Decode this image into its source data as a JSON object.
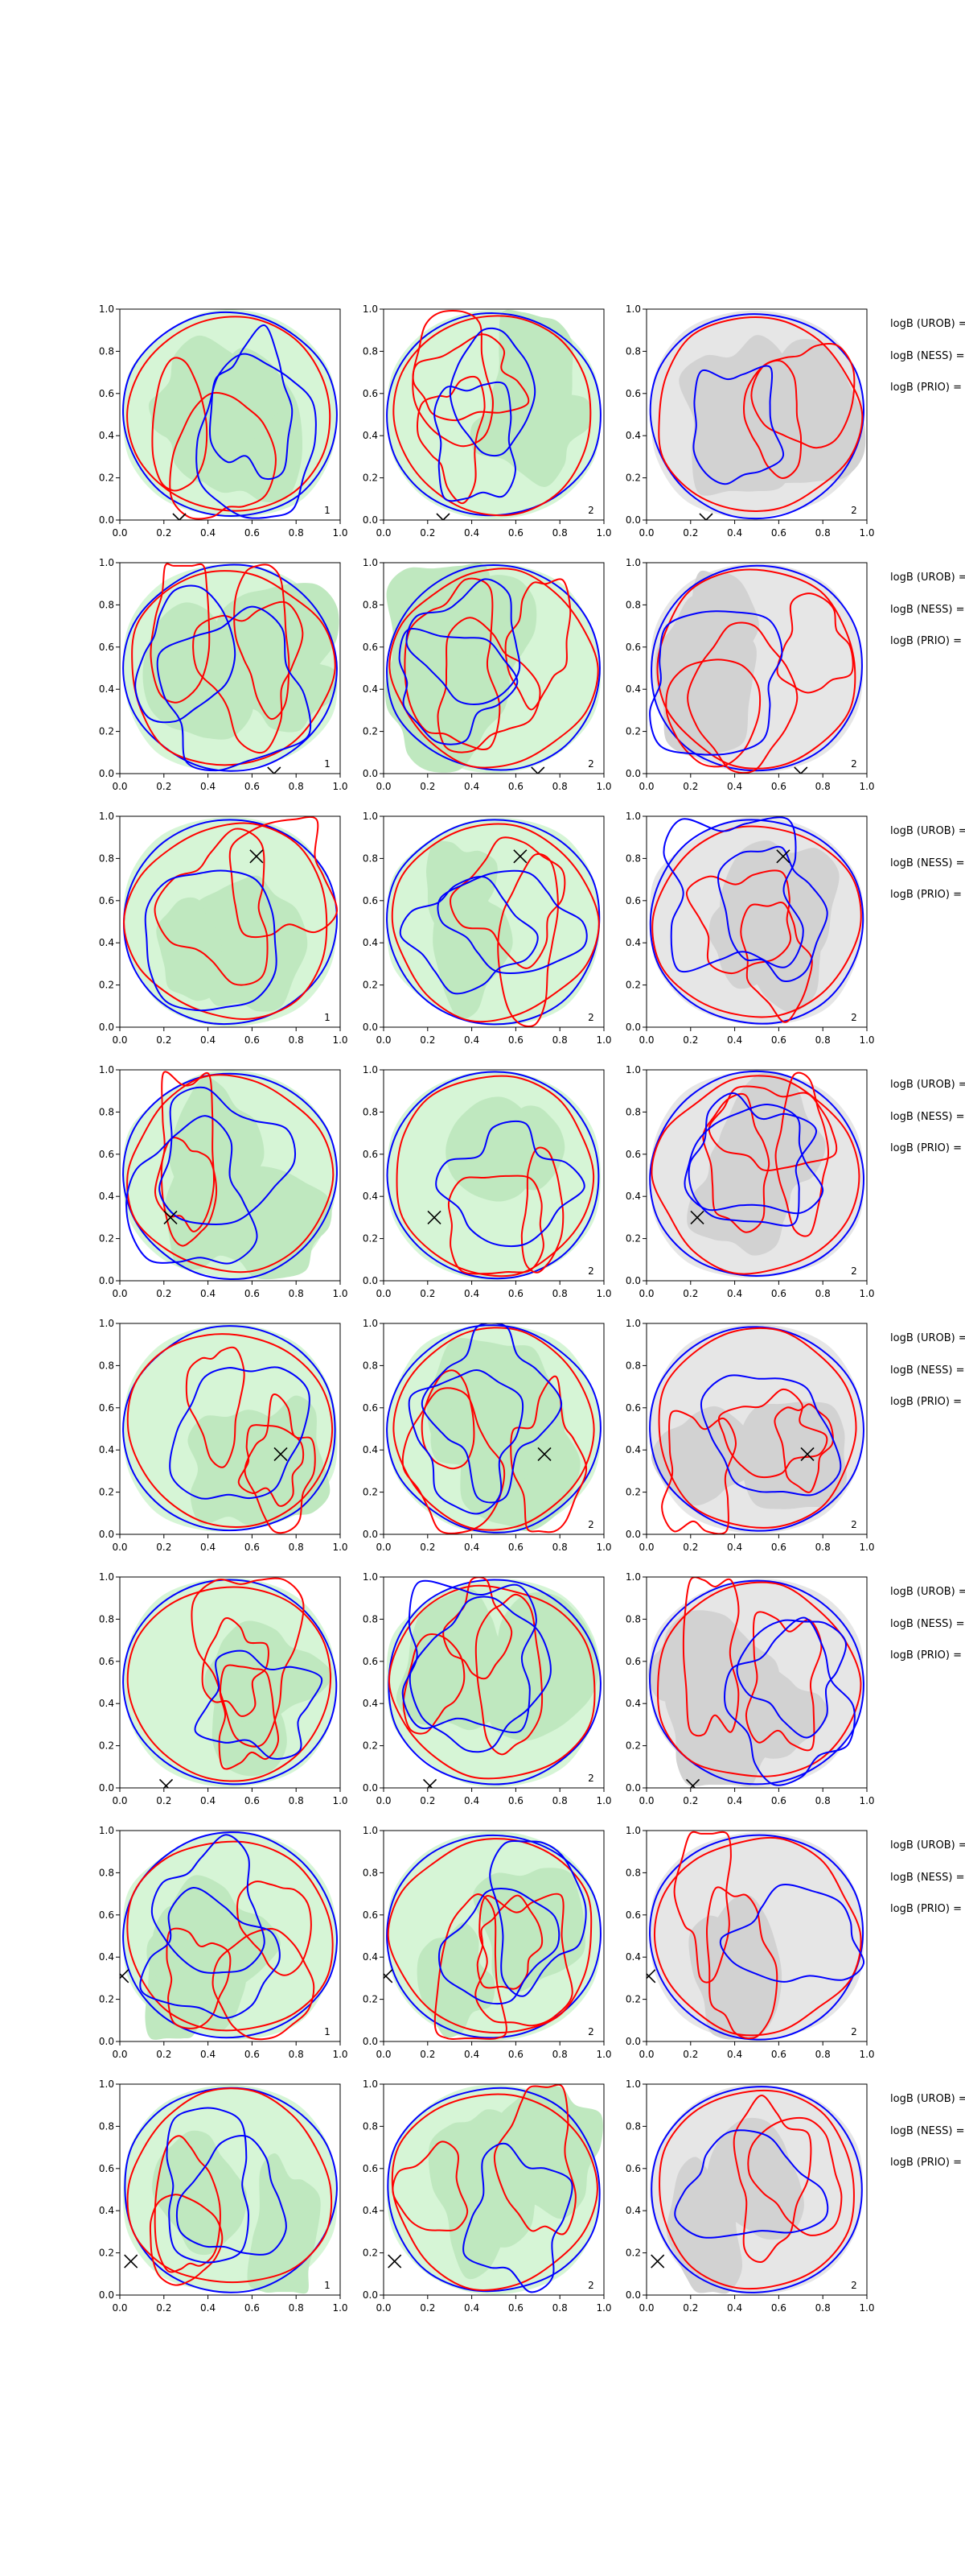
{
  "chart_data": {
    "type": "contour",
    "grid": false,
    "layout": {
      "rows": 8,
      "cols": 3
    },
    "xlim": [
      0,
      1
    ],
    "ylim": [
      0,
      1
    ],
    "ticks": {
      "x": [
        "0.0",
        "0.2",
        "0.4",
        "0.6",
        "0.8",
        "1.0"
      ],
      "y": [
        "0.0",
        "0.2",
        "0.4",
        "0.6",
        "0.8",
        "1.0"
      ]
    },
    "colors": {
      "fill_green_light": "#d6f5d6",
      "fill_green_mid": "#bfe8bf",
      "fill_gray_light": "#e6e6e6",
      "fill_gray_mid": "#d2d2d2",
      "contour_blue": "#0000ff",
      "contour_red": "#ff0000",
      "marker": "#000000"
    },
    "legend_labels": [
      "logB (UROB) =",
      "logB (NESS) =",
      "logB (PRIO) ="
    ],
    "rows": [
      {
        "marker": [
          0.27,
          0.0
        ],
        "panel_labels": [
          "1",
          "2",
          "2"
        ]
      },
      {
        "marker": [
          0.7,
          0.0
        ],
        "panel_labels": [
          "1",
          "2",
          "2"
        ]
      },
      {
        "marker": [
          0.62,
          0.81
        ],
        "panel_labels": [
          "1",
          "2",
          "2"
        ]
      },
      {
        "marker": [
          0.23,
          0.3
        ],
        "panel_labels": [
          "",
          "2",
          "2"
        ]
      },
      {
        "marker": [
          0.73,
          0.38
        ],
        "panel_labels": [
          "",
          "2",
          "2"
        ]
      },
      {
        "marker": [
          0.21,
          0.01
        ],
        "panel_labels": [
          "",
          "2",
          ""
        ]
      },
      {
        "marker": [
          0.01,
          0.31
        ],
        "panel_labels": [
          "1",
          "2",
          "2"
        ]
      },
      {
        "marker": [
          0.05,
          0.16
        ],
        "panel_labels": [
          "1",
          "2",
          "2"
        ]
      }
    ]
  }
}
